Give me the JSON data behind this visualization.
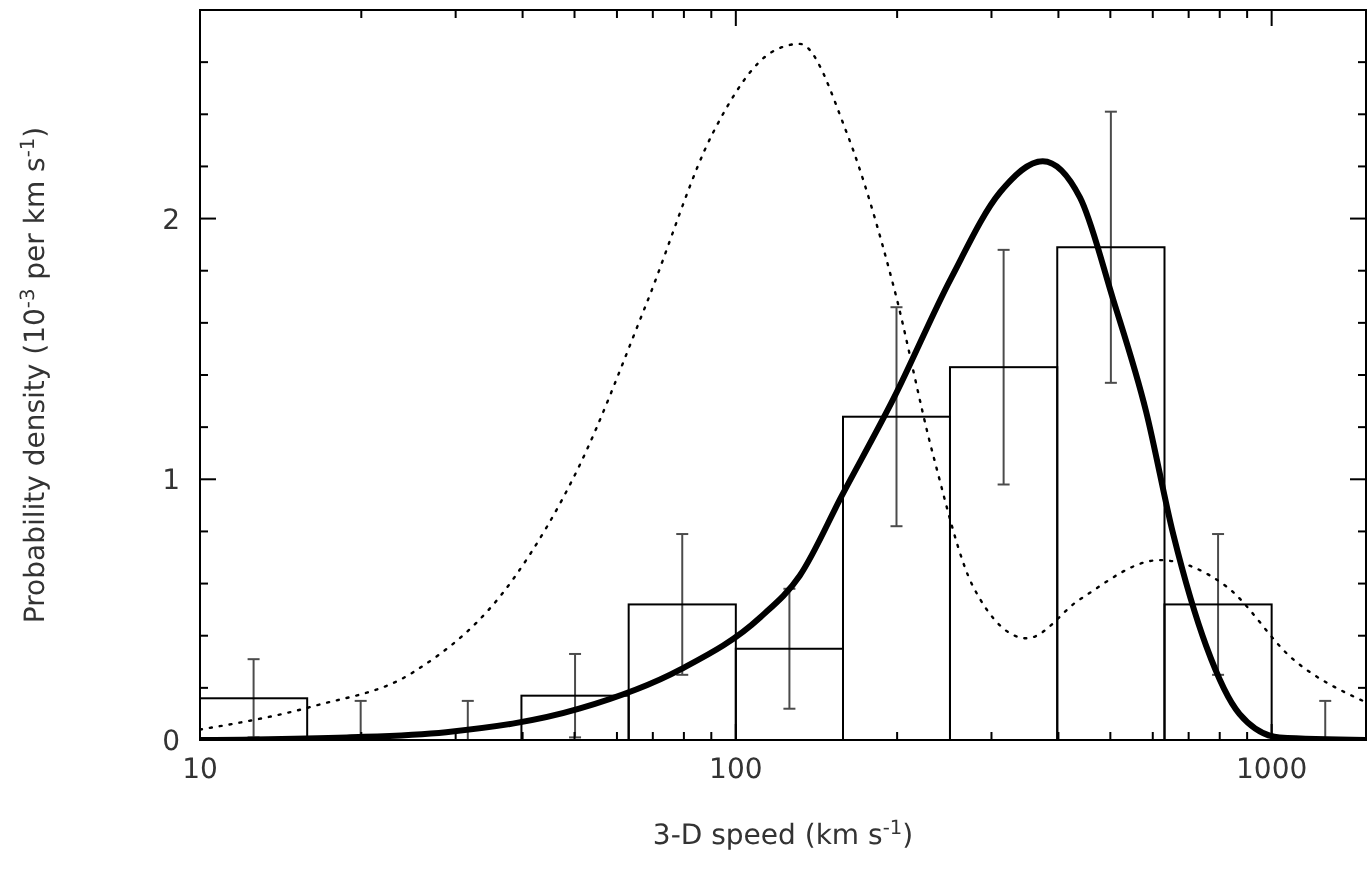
{
  "chart_data": {
    "type": "histogram",
    "xlabel": "3-D speed (km s$^{-1}$)",
    "ylabel": "Probability density (10$^{-3}$ per km s$^{-1}$)",
    "log": "x",
    "xlim": [
      10,
      1500
    ],
    "ylim": [
      0,
      2.8
    ],
    "xticks": [
      10,
      {
        "value": 20,
        "label": null
      },
      {
        "value": 30,
        "label": null
      },
      {
        "value": 40,
        "label": null
      },
      {
        "value": 50,
        "label": null
      },
      {
        "value": 60,
        "label": null
      },
      {
        "value": 70,
        "label": null
      },
      {
        "value": 80,
        "label": null
      },
      {
        "value": 90,
        "label": null
      },
      100,
      {
        "value": 200,
        "label": null
      },
      {
        "value": 300,
        "label": null
      },
      {
        "value": 400,
        "label": null
      },
      {
        "value": 500,
        "label": null
      },
      {
        "value": 600,
        "label": null
      },
      {
        "value": 700,
        "label": null
      },
      {
        "value": 800,
        "label": null
      },
      {
        "value": 900,
        "label": null
      },
      1000
    ],
    "yticks": [
      0,
      {
        "value": 0.2,
        "label": null
      },
      {
        "value": 0.4,
        "label": null
      },
      {
        "value": 0.6,
        "label": null
      },
      {
        "value": 0.8,
        "label": null
      },
      1,
      {
        "value": 1.2,
        "label": null
      },
      {
        "value": 1.4,
        "label": null
      },
      {
        "value": 1.6,
        "label": null
      },
      {
        "value": 1.8,
        "label": null
      },
      2,
      {
        "value": 2.2,
        "label": null
      },
      {
        "value": 2.4,
        "label": null
      },
      {
        "value": 2.6,
        "label": null
      }
    ],
    "series": [
      {
        "color": "#000000",
        "bins": [
          10,
          15.85,
          25.1,
          39.8,
          63.1,
          100,
          158.5,
          251,
          398,
          631,
          1000,
          1585
        ],
        "values": [
          0.16,
          0,
          0,
          0.17,
          0.52,
          0.35,
          1.24,
          1.43,
          1.89,
          0.52,
          0
        ],
        "errors": [
          0.15,
          [
            0,
            0.15
          ],
          [
            0,
            0.15
          ],
          0.16,
          0.27,
          0.23,
          0.42,
          0.45,
          0.52,
          0.27,
          [
            0,
            0.15
          ]
        ]
      },
      {
        "type": "line",
        "color": "#000000",
        "line_style": "solid",
        "x": [
          10,
          18.8,
          28.8,
          51,
          78.7,
          111,
          131.6,
          158,
          197,
          252,
          311,
          374,
          439,
          506,
          583,
          655,
          755,
          871,
          1035,
          1500
        ],
        "values": [
          0,
          0.01,
          0.03,
          0.12,
          0.27,
          0.47,
          0.63,
          0.94,
          1.31,
          1.77,
          2.1,
          2.22,
          2.08,
          1.69,
          1.26,
          0.79,
          0.36,
          0.1,
          0.01,
          0
        ]
      },
      {
        "type": "line",
        "color": "#000000",
        "line_style": "dotted",
        "x": [
          10,
          16.3,
          25,
          38.5,
          51,
          68,
          90.7,
          117,
          131.6,
          161,
          197,
          233,
          277,
          349,
          439,
          618,
          822,
          1096,
          1480
        ],
        "values": [
          0.04,
          0.13,
          0.26,
          0.62,
          1.05,
          1.67,
          2.33,
          2.64,
          2.67,
          2.33,
          1.74,
          1.1,
          0.59,
          0.39,
          0.54,
          0.69,
          0.59,
          0.31,
          0.15
        ]
      }
    ]
  }
}
